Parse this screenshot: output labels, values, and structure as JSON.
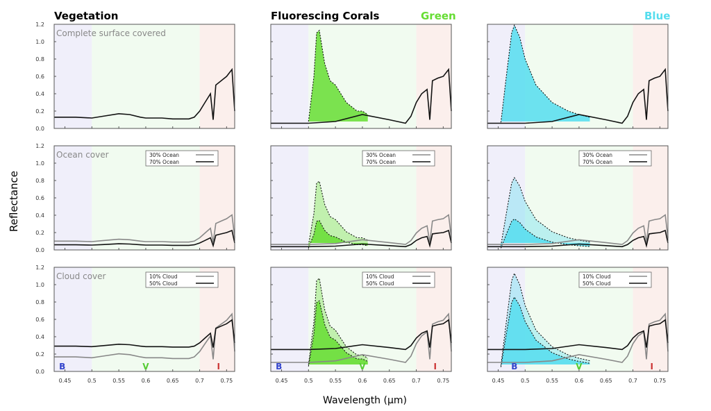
{
  "figure": {
    "ylabel": "Reflectance",
    "xlabel": "Wavelength (µm)",
    "column_titles": [
      "Vegetation",
      "Fluorescing Corals"
    ],
    "coral_variants": [
      {
        "label": "Green",
        "color": "#66dd33"
      },
      {
        "label": "Blue",
        "color": "#55ddee"
      }
    ],
    "row_labels": [
      "Complete surface covered",
      "Ocean cover",
      "Cloud cover"
    ],
    "legends": [
      [],
      [
        "30% Ocean",
        "70% Ocean"
      ],
      [
        "10% Cloud",
        "50% Cloud"
      ]
    ],
    "band_letters": [
      "B",
      "V",
      "I"
    ],
    "band_colors": {
      "B": "#3344cc",
      "V": "#55cc33",
      "I": "#cc3333"
    },
    "region_colors": {
      "blue": "#f0effa",
      "green": "#f1fbf0",
      "red": "#fbefec"
    }
  },
  "chart_data": [
    {
      "type": "line",
      "grid": false,
      "xlim": [
        0.43,
        0.765
      ],
      "ylim": [
        0,
        1.2
      ],
      "xticks": [
        "0.45",
        "0.5",
        "0.55",
        "0.6",
        "0.65",
        "0.7",
        "0.75"
      ],
      "yticks": [
        "0.0",
        "0.2",
        "0.4",
        "0.6",
        "0.8",
        "1.0",
        "1.2"
      ],
      "regions": [
        {
          "band": "blue",
          "from": 0.43,
          "to": 0.5
        },
        {
          "band": "green",
          "from": 0.5,
          "to": 0.7
        },
        {
          "band": "red",
          "from": 0.7,
          "to": 0.765
        }
      ]
    },
    {
      "name": "vegetation_baseline",
      "x": [
        0.43,
        0.47,
        0.5,
        0.52,
        0.55,
        0.57,
        0.59,
        0.6,
        0.61,
        0.63,
        0.65,
        0.68,
        0.69,
        0.7,
        0.71,
        0.72,
        0.725,
        0.73,
        0.74,
        0.75,
        0.76,
        0.765
      ],
      "y": [
        0.13,
        0.13,
        0.12,
        0.14,
        0.17,
        0.16,
        0.13,
        0.12,
        0.12,
        0.12,
        0.11,
        0.11,
        0.13,
        0.2,
        0.3,
        0.4,
        0.1,
        0.5,
        0.55,
        0.6,
        0.68,
        0.2
      ]
    },
    {
      "name": "green_coral_peak",
      "x": [
        0.5,
        0.51,
        0.515,
        0.52,
        0.53,
        0.54,
        0.55,
        0.57,
        0.59,
        0.6,
        0.61
      ],
      "y": [
        0.08,
        0.6,
        1.1,
        1.13,
        0.75,
        0.55,
        0.5,
        0.3,
        0.2,
        0.2,
        0.16
      ]
    },
    {
      "name": "blue_coral_peak",
      "x": [
        0.455,
        0.465,
        0.475,
        0.48,
        0.49,
        0.5,
        0.52,
        0.55,
        0.58,
        0.6,
        0.62
      ],
      "y": [
        0.07,
        0.6,
        1.1,
        1.19,
        1.05,
        0.8,
        0.5,
        0.3,
        0.2,
        0.16,
        0.13
      ]
    },
    {
      "name": "coral_baseline",
      "x": [
        0.43,
        0.5,
        0.55,
        0.6,
        0.65,
        0.68,
        0.69,
        0.7,
        0.71,
        0.72,
        0.725,
        0.73,
        0.74,
        0.75,
        0.76,
        0.765
      ],
      "y": [
        0.06,
        0.06,
        0.08,
        0.16,
        0.1,
        0.06,
        0.14,
        0.3,
        0.4,
        0.45,
        0.1,
        0.55,
        0.58,
        0.6,
        0.68,
        0.2
      ]
    }
  ]
}
